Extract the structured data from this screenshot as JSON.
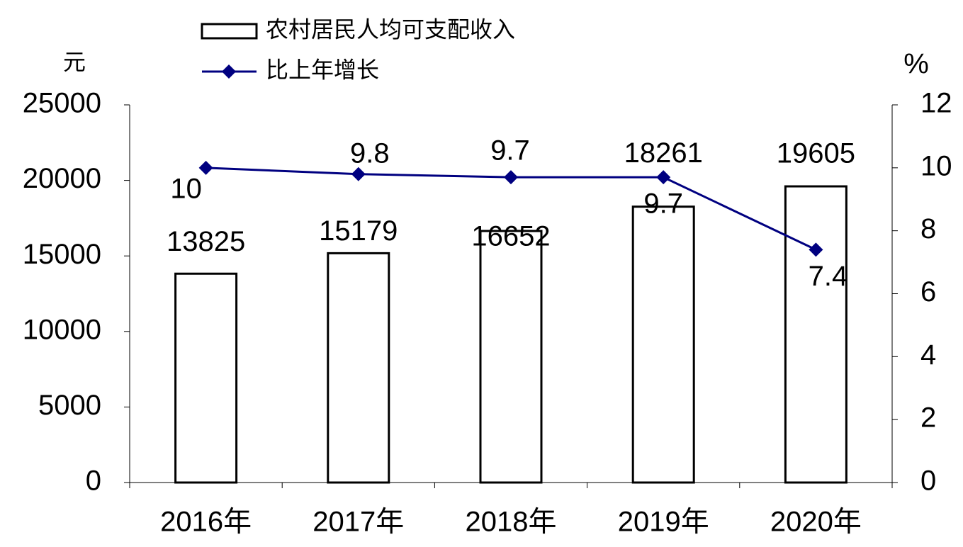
{
  "chart_data": {
    "type": "bar",
    "categories": [
      "2016年",
      "2017年",
      "2018年",
      "2019年",
      "2020年"
    ],
    "series": [
      {
        "name": "农村居民人均可支配收入",
        "color": "#ffffff",
        "values": [
          13825,
          15179,
          16652,
          18261,
          19605
        ]
      },
      {
        "name": "比上年增长",
        "color": "#000080",
        "axis": "y2",
        "type": "line",
        "values": [
          10,
          9.8,
          9.7,
          9.7,
          7.4
        ]
      }
    ],
    "y_unit": "元",
    "y2_unit": "%",
    "ylim": [
      0,
      25000
    ],
    "yticks": [
      0,
      5000,
      10000,
      15000,
      20000,
      25000
    ],
    "y2lim": [
      0,
      12
    ],
    "y2ticks": [
      0,
      2,
      4,
      6,
      8,
      10,
      12
    ],
    "grid": false,
    "legend": "top"
  }
}
